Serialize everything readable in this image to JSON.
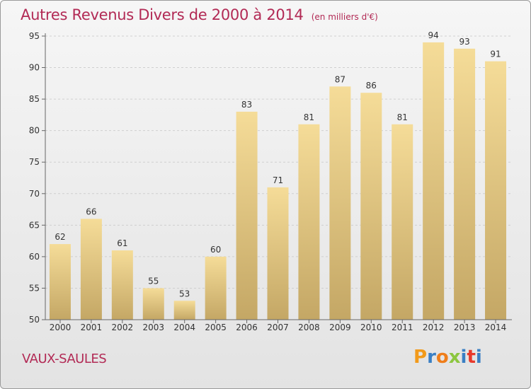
{
  "header": {
    "title": "Autres Revenus Divers de 2000 à 2014",
    "unit": "(en milliers d'€)"
  },
  "footer": {
    "commune": "VAUX-SAULES",
    "brand": "Proxiti"
  },
  "colors": {
    "title": "#b22a55",
    "bar_top": "#f5dc98",
    "bar_bottom": "#c4a765",
    "brand_letters": [
      "#f29a1a",
      "#3a7fc4",
      "#ef7d1a",
      "#8cc63f",
      "#3a7fc4",
      "#e8392b",
      "#3a7fc4"
    ]
  },
  "chart_data": {
    "type": "bar",
    "title": "Autres Revenus Divers de 2000 à 2014",
    "subtitle": "(en milliers d'€)",
    "xlabel": "",
    "ylabel": "",
    "categories": [
      "2000",
      "2001",
      "2002",
      "2003",
      "2004",
      "2005",
      "2006",
      "2007",
      "2008",
      "2009",
      "2010",
      "2011",
      "2012",
      "2013",
      "2014"
    ],
    "values": [
      62,
      66,
      61,
      55,
      53,
      60,
      83,
      71,
      81,
      87,
      86,
      81,
      94,
      93,
      91
    ],
    "ylim": [
      50,
      95
    ],
    "yticks": [
      "50",
      "55",
      "60",
      "65",
      "70",
      "75",
      "80",
      "85",
      "90",
      "95"
    ],
    "grid": true,
    "legend": "none"
  }
}
